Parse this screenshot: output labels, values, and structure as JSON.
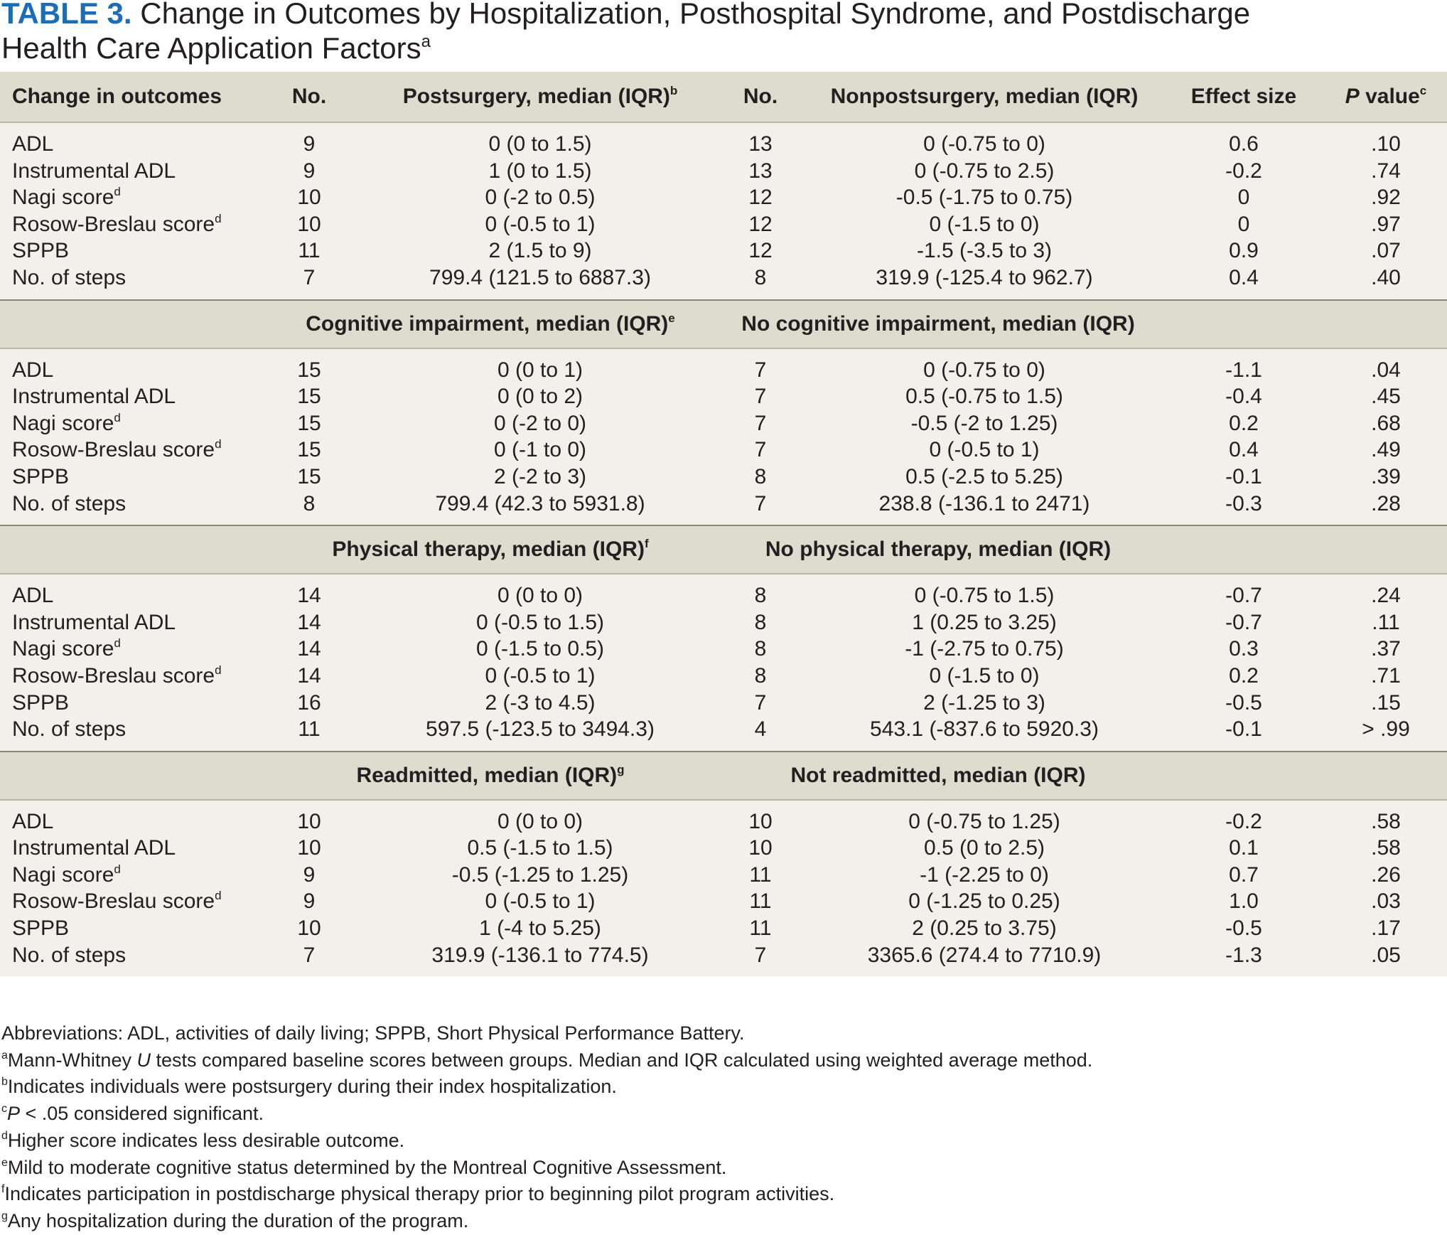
{
  "title": {
    "label": "TABLE 3.",
    "text_line1": "Change in Outcomes by Hospitalization, Posthospital Syndrome, and Postdischarge",
    "text_line2": "Health Care Application Factors",
    "footnote_mark": "a"
  },
  "header": {
    "change_in_outcomes": "Change in outcomes",
    "no_1": "No.",
    "group1": "Postsurgery, median (IQR)",
    "group1_mark": "b",
    "no_2": "No.",
    "group2": "Nonpostsurgery, median (IQR)",
    "effect_size": "Effect size",
    "p_letter": "P",
    "p_rest": " value",
    "p_mark": "c"
  },
  "sections": [
    {
      "group1": "Postsurgery",
      "rows": [
        {
          "label": "ADL",
          "mark": "",
          "n1": "9",
          "m1": "0 (0 to 1.5)",
          "n2": "13",
          "m2": "0 (-0.75 to 0)",
          "es": "0.6",
          "p": ".10"
        },
        {
          "label": "Instrumental ADL",
          "mark": "",
          "n1": "9",
          "m1": "1 (0 to 1.5)",
          "n2": "13",
          "m2": "0 (-0.75 to 2.5)",
          "es": "-0.2",
          "p": ".74"
        },
        {
          "label": "Nagi score",
          "mark": "d",
          "n1": "10",
          "m1": "0 (-2 to 0.5)",
          "n2": "12",
          "m2": "-0.5 (-1.75 to 0.75)",
          "es": "0",
          "p": ".92"
        },
        {
          "label": "Rosow-Breslau score",
          "mark": "d",
          "n1": "10",
          "m1": "0 (-0.5 to 1)",
          "n2": "12",
          "m2": "0 (-1.5 to 0)",
          "es": "0",
          "p": ".97"
        },
        {
          "label": "SPPB",
          "mark": "",
          "n1": "11",
          "m1": "2 (1.5 to 9)",
          "n2": "12",
          "m2": "-1.5 (-3.5 to 3)",
          "es": "0.9",
          "p": ".07"
        },
        {
          "label": "No. of steps",
          "mark": "",
          "n1": "7",
          "m1": "799.4 (121.5 to 6887.3)",
          "n2": "8",
          "m2": "319.9 (-125.4 to 962.7)",
          "es": "0.4",
          "p": ".40"
        }
      ]
    },
    {
      "group1": "Cognitive impairment, median (IQR)",
      "group1_mark": "e",
      "group2": "No cognitive impairment, median (IQR)",
      "rows": [
        {
          "label": "ADL",
          "mark": "",
          "n1": "15",
          "m1": "0 (0 to 1)",
          "n2": "7",
          "m2": "0 (-0.75 to 0)",
          "es": "-1.1",
          "p": ".04"
        },
        {
          "label": "Instrumental ADL",
          "mark": "",
          "n1": "15",
          "m1": "0 (0 to 2)",
          "n2": "7",
          "m2": "0.5 (-0.75 to 1.5)",
          "es": "-0.4",
          "p": ".45"
        },
        {
          "label": "Nagi score",
          "mark": "d",
          "n1": "15",
          "m1": "0 (-2 to 0)",
          "n2": "7",
          "m2": "-0.5 (-2 to 1.25)",
          "es": "0.2",
          "p": ".68"
        },
        {
          "label": "Rosow-Breslau score",
          "mark": "d",
          "n1": "15",
          "m1": "0 (-1 to 0)",
          "n2": "7",
          "m2": "0 (-0.5 to 1)",
          "es": "0.4",
          "p": ".49"
        },
        {
          "label": "SPPB",
          "mark": "",
          "n1": "15",
          "m1": "2 (-2 to 3)",
          "n2": "8",
          "m2": "0.5 (-2.5 to 5.25)",
          "es": "-0.1",
          "p": ".39"
        },
        {
          "label": "No. of steps",
          "mark": "",
          "n1": "8",
          "m1": "799.4 (42.3 to 5931.8)",
          "n2": "7",
          "m2": "238.8 (-136.1 to 2471)",
          "es": "-0.3",
          "p": ".28"
        }
      ]
    },
    {
      "group1": "Physical therapy, median (IQR)",
      "group1_mark": "f",
      "group2": "No physical therapy, median (IQR)",
      "rows": [
        {
          "label": "ADL",
          "mark": "",
          "n1": "14",
          "m1": "0 (0 to 0)",
          "n2": "8",
          "m2": "0 (-0.75 to 1.5)",
          "es": "-0.7",
          "p": ".24"
        },
        {
          "label": "Instrumental ADL",
          "mark": "",
          "n1": "14",
          "m1": "0 (-0.5 to 1.5)",
          "n2": "8",
          "m2": "1 (0.25 to 3.25)",
          "es": "-0.7",
          "p": ".11"
        },
        {
          "label": "Nagi score",
          "mark": "d",
          "n1": "14",
          "m1": "0 (-1.5 to 0.5)",
          "n2": "8",
          "m2": "-1 (-2.75 to 0.75)",
          "es": "0.3",
          "p": ".37"
        },
        {
          "label": "Rosow-Breslau score",
          "mark": "d",
          "n1": "14",
          "m1": "0 (-0.5 to 1)",
          "n2": "8",
          "m2": "0 (-1.5 to 0)",
          "es": "0.2",
          "p": ".71"
        },
        {
          "label": "SPPB",
          "mark": "",
          "n1": "16",
          "m1": "2 (-3 to 4.5)",
          "n2": "7",
          "m2": "2 (-1.25 to 3)",
          "es": "-0.5",
          "p": ".15"
        },
        {
          "label": "No. of steps",
          "mark": "",
          "n1": "11",
          "m1": "597.5 (-123.5 to 3494.3)",
          "n2": "4",
          "m2": "543.1 (-837.6 to 5920.3)",
          "es": "-0.1",
          "p": "> .99"
        }
      ]
    },
    {
      "group1": "Readmitted, median (IQR)",
      "group1_mark": "g",
      "group2": "Not readmitted, median (IQR)",
      "rows": [
        {
          "label": "ADL",
          "mark": "",
          "n1": "10",
          "m1": "0 (0 to 0)",
          "n2": "10",
          "m2": "0 (-0.75 to 1.25)",
          "es": "-0.2",
          "p": ".58"
        },
        {
          "label": "Instrumental ADL",
          "mark": "",
          "n1": "10",
          "m1": "0.5 (-1.5 to 1.5)",
          "n2": "10",
          "m2": "0.5 (0 to 2.5)",
          "es": "0.1",
          "p": ".58"
        },
        {
          "label": "Nagi score",
          "mark": "d",
          "n1": "9",
          "m1": "-0.5 (-1.25 to 1.25)",
          "n2": "11",
          "m2": "-1 (-2.25 to 0)",
          "es": "0.7",
          "p": ".26"
        },
        {
          "label": "Rosow-Breslau score",
          "mark": "d",
          "n1": "9",
          "m1": "0 (-0.5 to 1)",
          "n2": "11",
          "m2": "0 (-1.25 to 0.25)",
          "es": "1.0",
          "p": ".03"
        },
        {
          "label": "SPPB",
          "mark": "",
          "n1": "10",
          "m1": "1 (-4 to 5.25)",
          "n2": "11",
          "m2": "2 (0.25 to 3.75)",
          "es": "-0.5",
          "p": ".17"
        },
        {
          "label": "No. of steps",
          "mark": "",
          "n1": "7",
          "m1": "319.9 (-136.1 to 774.5)",
          "n2": "7",
          "m2": "3365.6 (274.4 to 7710.9)",
          "es": "-1.3",
          "p": ".05"
        }
      ]
    }
  ],
  "footnotes": {
    "abbreviations": "Abbreviations: ADL, activities of daily living; SPPB, Short Physical Performance Battery.",
    "a_mark": "a",
    "a_text": "Mann-Whitney ",
    "a_u": "U",
    "a_text2": " tests compared baseline scores between groups. Median and IQR calculated using weighted average method.",
    "b_mark": "b",
    "b_text": "Indicates individuals were postsurgery during their index hospitalization.",
    "c_mark": "c",
    "c_p": "P",
    "c_text": " < .05 considered significant.",
    "d_mark": "d",
    "d_text": "Higher score indicates less desirable outcome.",
    "e_mark": "e",
    "e_text": "Mild to moderate cognitive status determined by the Montreal Cognitive Assessment.",
    "f_mark": "f",
    "f_text": "Indicates participation in postdischarge physical therapy prior to beginning pilot program activities.",
    "g_mark": "g",
    "g_text": "Any hospitalization during the duration of the program."
  }
}
